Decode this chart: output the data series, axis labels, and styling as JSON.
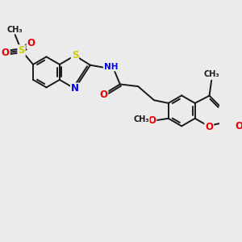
{
  "bg_color": "#ebebeb",
  "bond_color": "#1a1a1a",
  "bond_width": 1.4,
  "atom_colors": {
    "N": "#0000ee",
    "O": "#ee0000",
    "S": "#cccc00",
    "C": "#1a1a1a",
    "H": "#3a8a8a"
  },
  "font_size": 7.0,
  "xlim": [
    0,
    10.0
  ],
  "ylim": [
    -0.5,
    9.5
  ]
}
